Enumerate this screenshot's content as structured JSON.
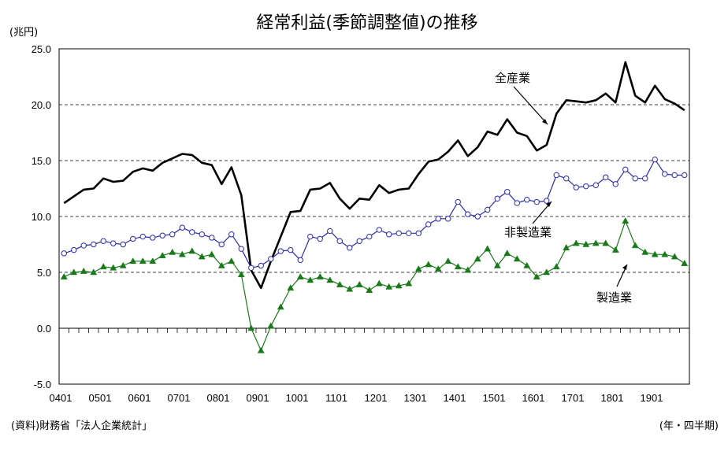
{
  "chart_data": {
    "type": "line",
    "title": "経常利益(季節調整値)の推移",
    "y_unit": "(兆円)",
    "x_unit": "(年・四半期)",
    "source": "(資料)財務省「法人企業統計」",
    "ylim": [
      -5.0,
      25.0
    ],
    "yticks": [
      "25.0",
      "20.0",
      "15.0",
      "10.0",
      "5.0",
      "0.0",
      "-5.0"
    ],
    "yticks_values": [
      25,
      20,
      15,
      10,
      5,
      0,
      -5
    ],
    "dashed_grid_at": [
      20,
      15,
      10,
      5
    ],
    "xtick_labels": [
      "0401",
      "0501",
      "0601",
      "0701",
      "0801",
      "0901",
      "1001",
      "1101",
      "1201",
      "1301",
      "1401",
      "1501",
      "1601",
      "1701",
      "1801",
      "1901"
    ],
    "x": [
      "0401",
      "0402",
      "0403",
      "0404",
      "0501",
      "0502",
      "0503",
      "0504",
      "0601",
      "0602",
      "0603",
      "0604",
      "0701",
      "0702",
      "0703",
      "0704",
      "0801",
      "0802",
      "0803",
      "0804",
      "0901",
      "0902",
      "0903",
      "0904",
      "1001",
      "1002",
      "1003",
      "1004",
      "1101",
      "1102",
      "1103",
      "1104",
      "1201",
      "1202",
      "1203",
      "1204",
      "1301",
      "1302",
      "1303",
      "1304",
      "1401",
      "1402",
      "1403",
      "1404",
      "1501",
      "1502",
      "1503",
      "1504",
      "1601",
      "1602",
      "1603",
      "1604",
      "1701",
      "1702",
      "1703",
      "1704",
      "1801",
      "1802",
      "1803",
      "1804",
      "1901",
      "1902",
      "1903",
      "1904"
    ],
    "series": [
      {
        "name": "全産業",
        "color": "#000000",
        "marker": "none",
        "values": [
          11.2,
          11.8,
          12.4,
          12.5,
          13.4,
          13.1,
          13.2,
          14.0,
          14.3,
          14.1,
          14.8,
          15.2,
          15.6,
          15.5,
          14.8,
          14.6,
          12.9,
          14.4,
          11.9,
          5.2,
          3.6,
          6.0,
          8.2,
          10.4,
          10.5,
          12.4,
          12.5,
          13.0,
          11.6,
          10.7,
          11.6,
          11.5,
          12.8,
          12.1,
          12.4,
          12.5,
          13.8,
          14.9,
          15.1,
          15.8,
          16.8,
          15.4,
          16.2,
          17.6,
          17.3,
          18.7,
          17.5,
          17.2,
          15.9,
          16.4,
          19.2,
          20.4,
          20.3,
          20.2,
          20.4,
          21.0,
          20.2,
          23.8,
          20.8,
          20.2,
          21.7,
          20.5,
          20.1,
          19.5
        ]
      },
      {
        "name": "非製造業",
        "color": "#2b2bb0",
        "marker": "open-circle",
        "values": [
          6.7,
          7.0,
          7.4,
          7.5,
          7.8,
          7.6,
          7.5,
          8.0,
          8.2,
          8.1,
          8.3,
          8.4,
          9.0,
          8.6,
          8.4,
          8.1,
          7.5,
          8.4,
          7.1,
          5.4,
          5.6,
          6.2,
          6.9,
          7.0,
          6.1,
          8.2,
          8.0,
          8.7,
          7.8,
          7.2,
          7.8,
          8.2,
          8.8,
          8.4,
          8.5,
          8.5,
          8.5,
          9.3,
          9.8,
          9.8,
          11.3,
          10.2,
          10.0,
          10.6,
          11.6,
          12.2,
          11.2,
          11.5,
          11.3,
          11.4,
          13.7,
          13.4,
          12.6,
          12.7,
          12.8,
          13.5,
          12.9,
          14.2,
          13.4,
          13.4,
          15.1,
          13.8,
          13.7,
          13.7
        ]
      },
      {
        "name": "製造業",
        "color": "#1a7a1a",
        "marker": "filled-triangle",
        "values": [
          4.6,
          5.0,
          5.1,
          5.0,
          5.5,
          5.4,
          5.6,
          6.0,
          6.0,
          6.0,
          6.5,
          6.8,
          6.6,
          6.9,
          6.4,
          6.6,
          5.6,
          6.0,
          4.8,
          0.0,
          -2.0,
          0.2,
          1.9,
          3.6,
          4.6,
          4.3,
          4.6,
          4.3,
          3.9,
          3.5,
          3.9,
          3.4,
          4.0,
          3.7,
          3.8,
          4.0,
          5.3,
          5.7,
          5.3,
          6.0,
          5.5,
          5.2,
          6.2,
          7.1,
          5.6,
          6.7,
          6.2,
          5.6,
          4.6,
          5.0,
          5.5,
          7.2,
          7.6,
          7.5,
          7.6,
          7.6,
          7.0,
          9.6,
          7.4,
          6.8,
          6.6,
          6.6,
          6.4,
          5.8
        ]
      }
    ],
    "annotations": [
      "全産業",
      "非製造業",
      "製造業"
    ]
  }
}
